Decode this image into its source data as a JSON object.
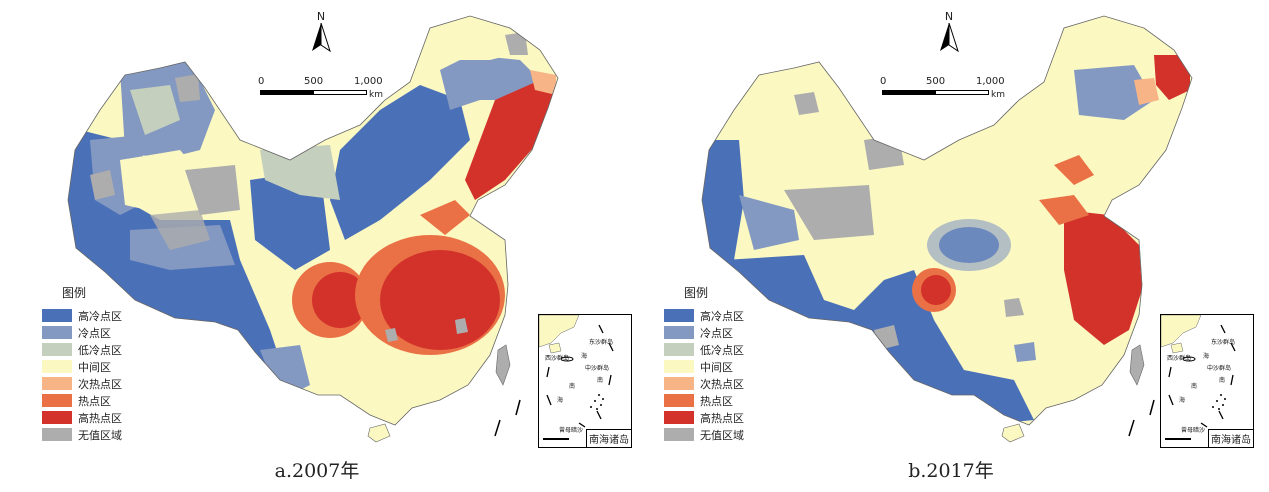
{
  "legend": {
    "title": "图例",
    "items": [
      {
        "label": "高冷点区",
        "color": "#4a70b8"
      },
      {
        "label": "冷点区",
        "color": "#8499c1"
      },
      {
        "label": "低冷点区",
        "color": "#c4cfbd"
      },
      {
        "label": "中间区",
        "color": "#fbf8c2"
      },
      {
        "label": "次热点区",
        "color": "#f6b487"
      },
      {
        "label": "热点区",
        "color": "#ea7145"
      },
      {
        "label": "高热点区",
        "color": "#d3322b"
      },
      {
        "label": "无值区域",
        "color": "#adadad"
      }
    ]
  },
  "north_arrow": {
    "letter": "N"
  },
  "scale": {
    "ticks": [
      "0",
      "500",
      "1,000"
    ],
    "unit": "km"
  },
  "inset": {
    "title": "南海诸岛",
    "labels": {
      "dongsha": "东沙群岛",
      "xisha": "西沙群岛",
      "zhongsha": "中沙群岛",
      "nansha_zhu": "南",
      "hai": "海",
      "nan": "南",
      "huangyan": "黄岩岛",
      "zengmu": "曾母暗沙"
    }
  },
  "maps": [
    {
      "caption": "a.2007年",
      "icon": "china-county-map-2007"
    },
    {
      "caption": "b.2017年",
      "icon": "china-county-map-2017"
    }
  ]
}
